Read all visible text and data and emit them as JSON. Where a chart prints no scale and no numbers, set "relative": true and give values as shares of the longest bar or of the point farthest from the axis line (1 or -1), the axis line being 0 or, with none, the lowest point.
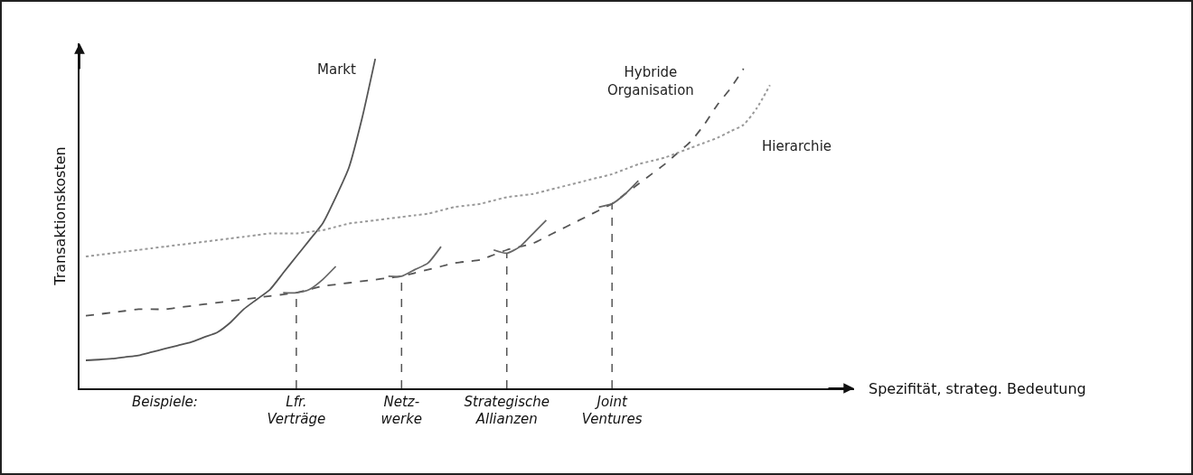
{
  "chart_data": {
    "type": "line",
    "relative": true,
    "legend": false,
    "grid": false,
    "tick_labels": "x",
    "ylabel": "Transaktionskosten",
    "annotations": [
      "Beispiele:",
      "Spezifität, strateg. Bedeutung"
    ],
    "categories": [
      null,
      null,
      null,
      null,
      null,
      null,
      null,
      null,
      null,
      null,
      null,
      null,
      null,
      null,
      null,
      null,
      "Lfr.\nVerträge",
      null,
      null,
      null,
      null,
      null,
      null,
      null,
      "Netz-\nwerke",
      null,
      null,
      null,
      null,
      null,
      null,
      null,
      "Strategische\nAllianzen",
      null,
      null,
      null,
      null,
      null,
      null,
      null,
      "Joint\nVentures",
      null,
      null,
      null,
      null,
      null,
      null,
      null,
      null,
      null,
      null,
      null,
      null
    ],
    "series": [
      {
        "name": "Markt",
        "color": "#555555",
        "line_style": "solid",
        "values": [
          0.085,
          0.087,
          0.09,
          0.095,
          0.1,
          0.11,
          0.12,
          0.13,
          0.14,
          0.155,
          0.17,
          0.2,
          0.24,
          0.27,
          0.3,
          0.35,
          0.4,
          0.45,
          0.5,
          0.58,
          0.67,
          0.82,
          1.0,
          null,
          null,
          null,
          null,
          null,
          null,
          null,
          null,
          null,
          null,
          null,
          null,
          null,
          null,
          null,
          null,
          null,
          null,
          null,
          null,
          null,
          null,
          null,
          null,
          null,
          null,
          null,
          null,
          null,
          null
        ]
      },
      {
        "name": "Hybride\nOrganisation",
        "color": "#555555",
        "line_style": "dashed",
        "values": [
          0.22,
          0.225,
          0.23,
          0.235,
          0.24,
          0.24,
          0.24,
          0.245,
          0.25,
          0.255,
          0.26,
          0.265,
          0.27,
          0.275,
          0.28,
          0.285,
          0.29,
          0.3,
          0.31,
          0.315,
          0.32,
          0.325,
          0.33,
          0.335,
          0.34,
          0.35,
          0.36,
          0.37,
          0.38,
          0.385,
          0.39,
          0.405,
          0.42,
          0.43,
          0.44,
          0.46,
          0.48,
          0.5,
          0.52,
          0.54,
          0.56,
          0.59,
          0.62,
          0.65,
          0.68,
          0.715,
          0.75,
          0.8,
          0.86,
          0.91,
          0.97,
          null,
          null
        ]
      },
      {
        "name": "Hierarchie",
        "color": "#999999",
        "line_style": "dotted",
        "values": [
          0.4,
          0.405,
          0.41,
          0.415,
          0.42,
          0.425,
          0.43,
          0.435,
          0.44,
          0.445,
          0.45,
          0.455,
          0.46,
          0.465,
          0.47,
          0.47,
          0.47,
          0.475,
          0.48,
          0.49,
          0.5,
          0.505,
          0.51,
          0.515,
          0.52,
          0.525,
          0.53,
          0.54,
          0.55,
          0.555,
          0.56,
          0.57,
          0.58,
          0.585,
          0.59,
          0.6,
          0.61,
          0.62,
          0.63,
          0.64,
          0.65,
          0.665,
          0.68,
          0.69,
          0.7,
          0.715,
          0.73,
          0.745,
          0.76,
          0.78,
          0.8,
          0.85,
          0.92
        ]
      },
      {
        "color": "#666666",
        "line_style": "solid",
        "values": [
          null,
          null,
          null,
          null,
          null,
          null,
          null,
          null,
          null,
          null,
          null,
          null,
          null,
          null,
          null,
          0.29,
          0.29,
          0.3,
          0.33,
          0.37,
          null,
          null,
          null,
          null,
          null,
          null,
          null,
          null,
          null,
          null,
          null,
          null,
          null,
          null,
          null,
          null,
          null,
          null,
          null,
          null,
          null,
          null,
          null,
          null,
          null,
          null,
          null,
          null,
          null,
          null,
          null,
          null,
          null
        ]
      },
      {
        "color": "#666666",
        "line_style": "solid",
        "values": [
          null,
          null,
          null,
          null,
          null,
          null,
          null,
          null,
          null,
          null,
          null,
          null,
          null,
          null,
          null,
          null,
          null,
          null,
          null,
          null,
          null,
          null,
          null,
          0.34,
          0.34,
          0.36,
          0.38,
          0.43,
          null,
          null,
          null,
          null,
          null,
          null,
          null,
          null,
          null,
          null,
          null,
          null,
          null,
          null,
          null,
          null,
          null,
          null,
          null,
          null,
          null,
          null,
          null,
          null,
          null
        ]
      },
      {
        "color": "#666666",
        "line_style": "solid",
        "values": [
          null,
          null,
          null,
          null,
          null,
          null,
          null,
          null,
          null,
          null,
          null,
          null,
          null,
          null,
          null,
          null,
          null,
          null,
          null,
          null,
          null,
          null,
          null,
          null,
          null,
          null,
          null,
          null,
          null,
          null,
          null,
          0.42,
          0.41,
          0.43,
          0.47,
          0.51,
          null,
          null,
          null,
          null,
          null,
          null,
          null,
          null,
          null,
          null,
          null,
          null,
          null,
          null,
          null,
          null,
          null
        ]
      },
      {
        "color": "#666666",
        "line_style": "solid",
        "values": [
          null,
          null,
          null,
          null,
          null,
          null,
          null,
          null,
          null,
          null,
          null,
          null,
          null,
          null,
          null,
          null,
          null,
          null,
          null,
          null,
          null,
          null,
          null,
          null,
          null,
          null,
          null,
          null,
          null,
          null,
          null,
          null,
          null,
          null,
          null,
          null,
          null,
          null,
          null,
          0.55,
          0.56,
          0.59,
          0.63,
          null,
          null,
          null,
          null,
          null,
          null,
          null,
          null,
          null,
          null
        ]
      }
    ],
    "ref_lines": [
      {
        "axis": "x",
        "value": "Lfr.\nVerträge",
        "color": "#555555",
        "line_style": "dashed"
      },
      {
        "axis": "x",
        "value": "Netz-\nwerke",
        "color": "#555555",
        "line_style": "dashed"
      },
      {
        "axis": "x",
        "value": "Strategische\nAllianzen",
        "color": "#555555",
        "line_style": "dashed"
      },
      {
        "axis": "x",
        "value": "Joint\nVentures",
        "color": "#555555",
        "line_style": "dashed"
      }
    ]
  }
}
